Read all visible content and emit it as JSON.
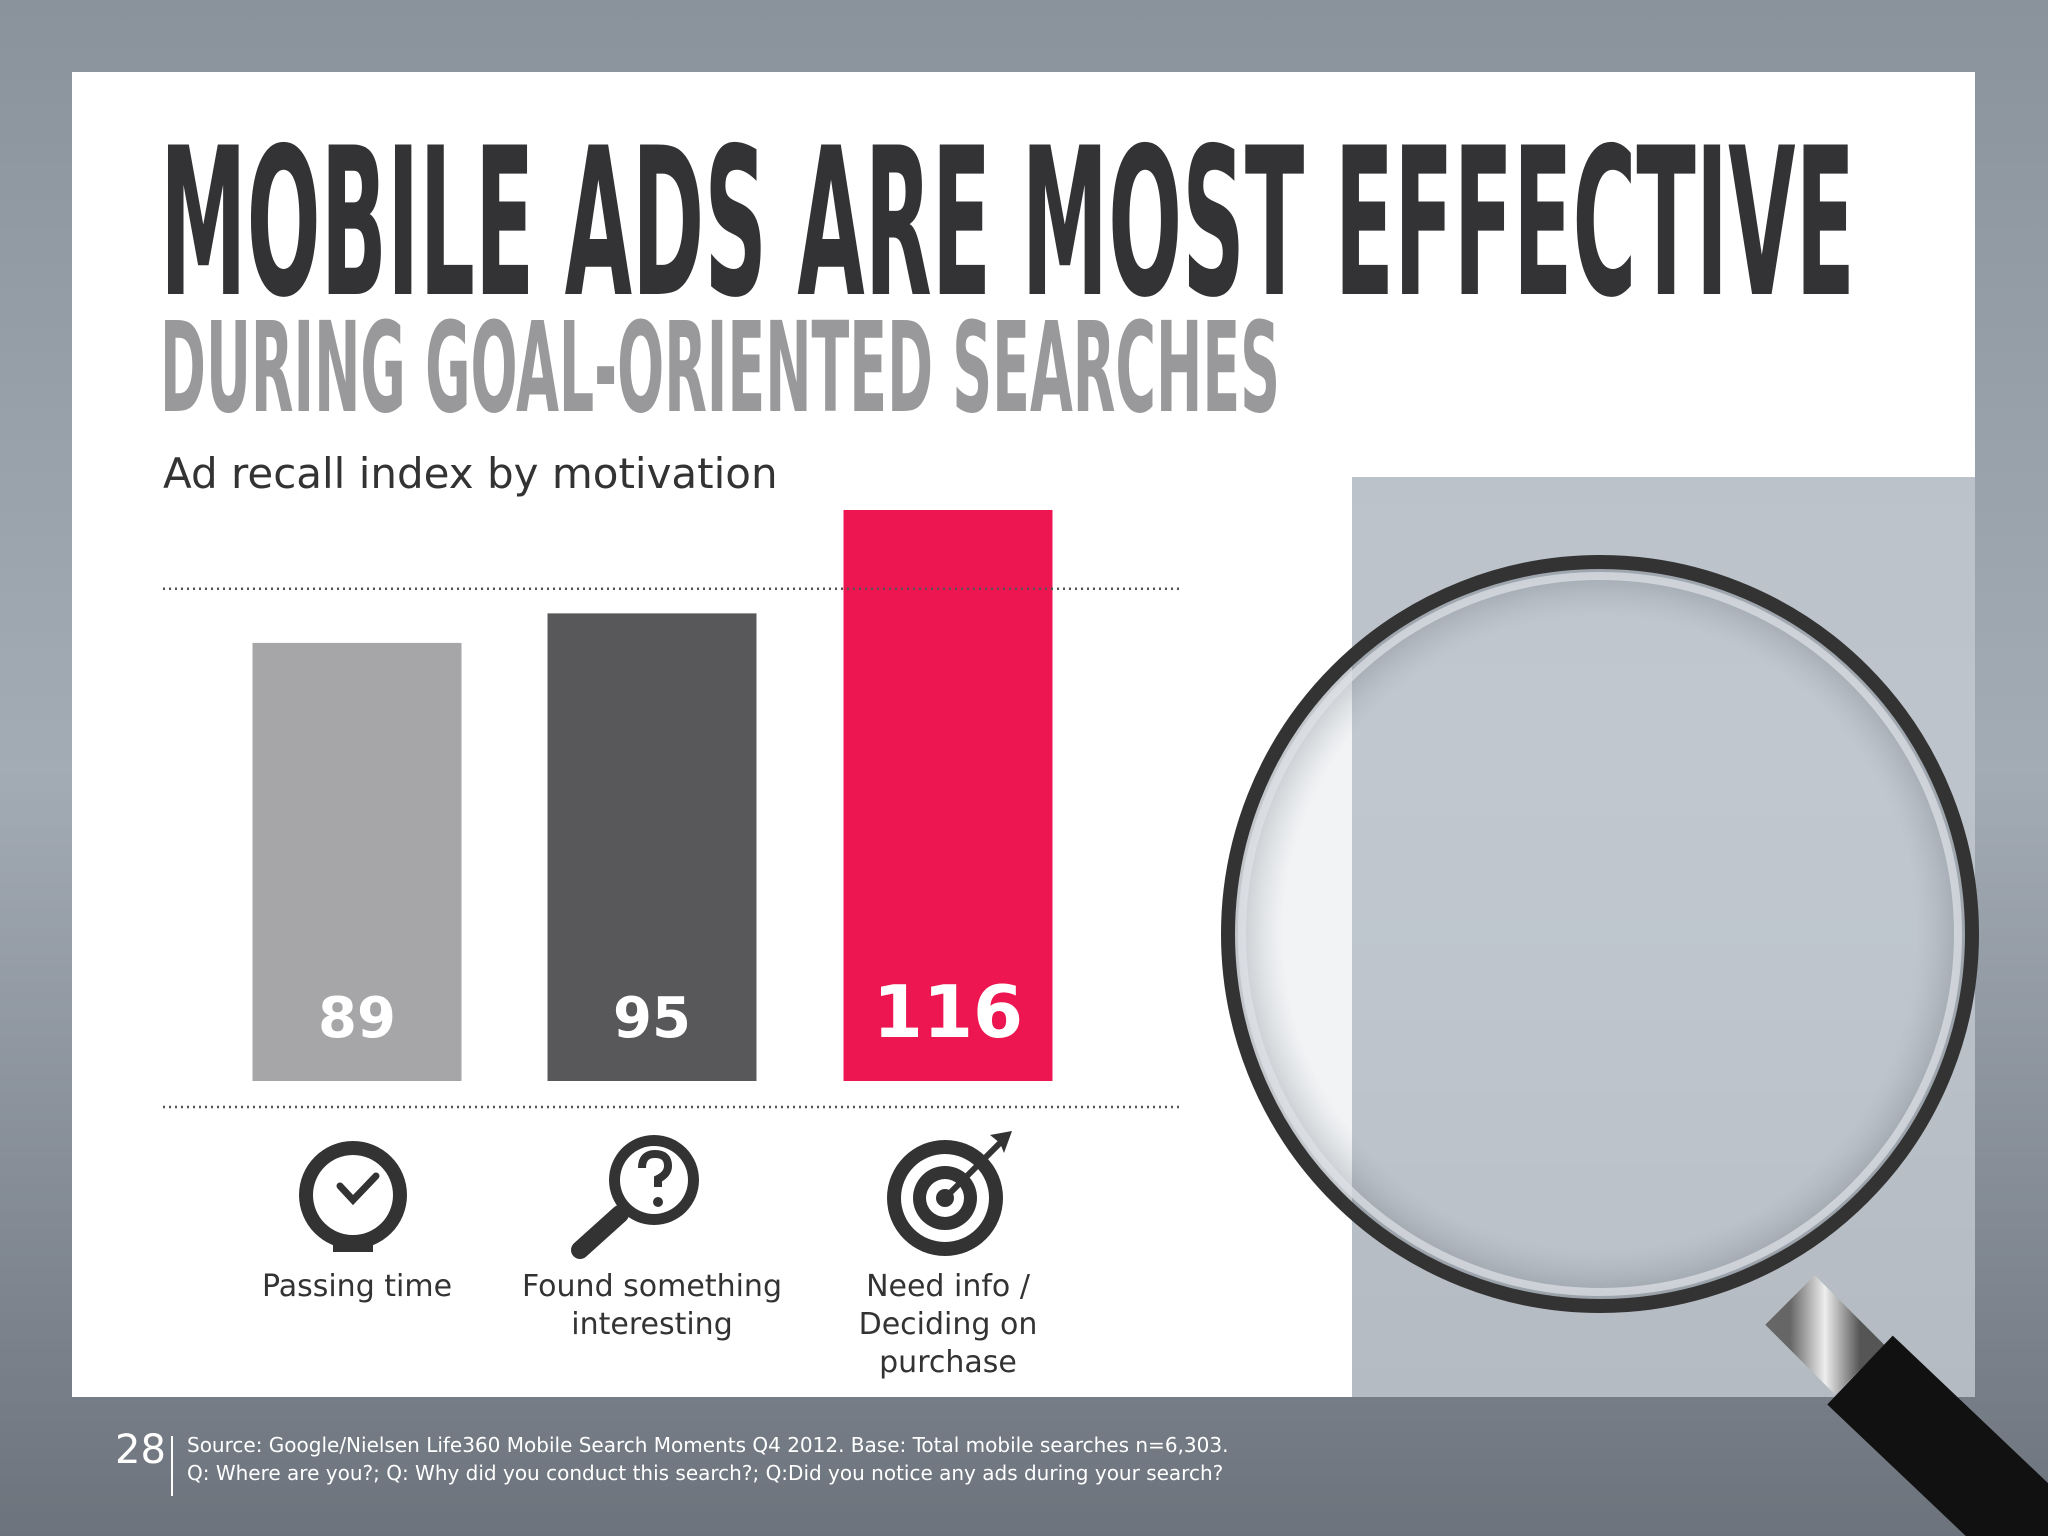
{
  "chart_data": {
    "type": "bar",
    "title": "MOBILE ADS ARE MOST EFFECTIVE",
    "subtitle": "DURING GOAL-ORIENTED SEARCHES",
    "caption": "Ad recall index by motivation",
    "categories": [
      "Passing time",
      "Found something interesting",
      "Need info / Deciding on purchase"
    ],
    "values": [
      89,
      95,
      116
    ],
    "colors": [
      "#a6a6a8",
      "#58585a",
      "#ed1651"
    ],
    "ylim": [
      0,
      116
    ],
    "reference_line": 100
  },
  "footer": {
    "page": "28",
    "source": [
      "Source: Google/Nielsen Life360 Mobile Search Moments Q4 2012. Base: Total mobile searches n=6,303.",
      "Q: Where are you?; Q: Why did you conduct this search?; Q:Did you notice any ads during your search?"
    ]
  }
}
